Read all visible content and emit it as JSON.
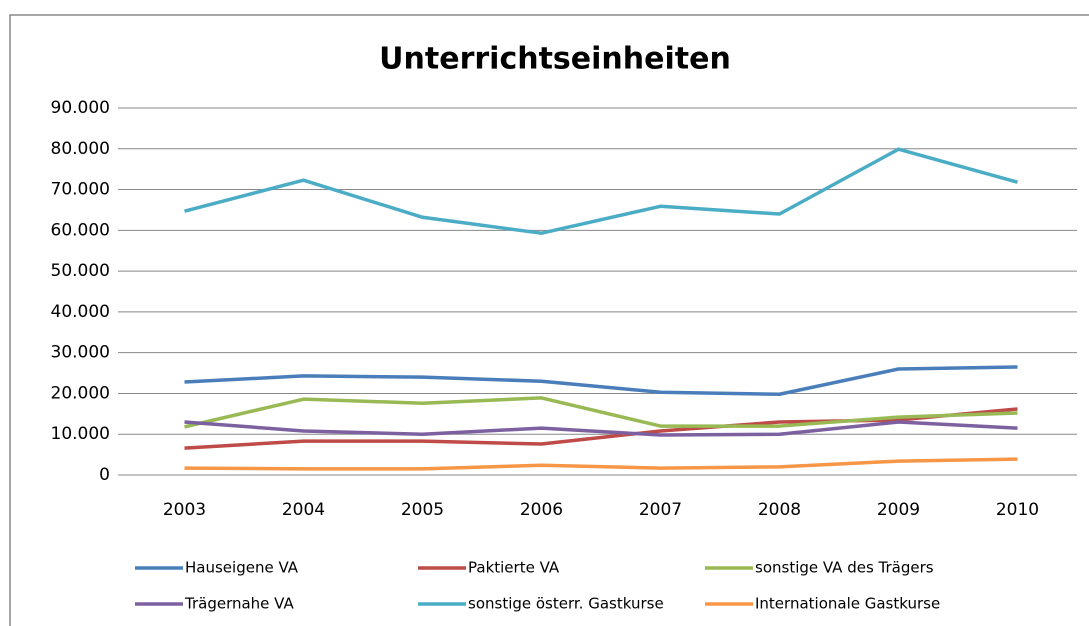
{
  "chart_data": {
    "type": "line",
    "title": "Unterrichtseinheiten",
    "categories": [
      "2003",
      "2004",
      "2005",
      "2006",
      "2007",
      "2008",
      "2009",
      "2010"
    ],
    "series": [
      {
        "name": "Hauseigene VA",
        "color": "#4a7ebb",
        "values": [
          22800,
          24300,
          24000,
          23000,
          20300,
          19800,
          26000,
          26500
        ]
      },
      {
        "name": "Paktierte VA",
        "color": "#be4b48",
        "values": [
          6600,
          8300,
          8300,
          7600,
          10800,
          13000,
          13500,
          16200
        ]
      },
      {
        "name": "sonstige VA des Trägers",
        "color": "#98b954",
        "values": [
          11800,
          18600,
          17600,
          18900,
          12000,
          12000,
          14200,
          15200
        ]
      },
      {
        "name": "Trägernahe VA",
        "color": "#7d60a0",
        "values": [
          13000,
          10800,
          10000,
          11500,
          9800,
          10000,
          13000,
          11500
        ]
      },
      {
        "name": "sonstige österr. Gastkurse",
        "color": "#4bacc6",
        "values": [
          64700,
          72300,
          63200,
          59300,
          65900,
          64000,
          79900,
          71800
        ]
      },
      {
        "name": "Internationale Gastkurse",
        "color": "#f79646",
        "values": [
          1700,
          1500,
          1500,
          2400,
          1700,
          2000,
          3400,
          3900
        ]
      }
    ],
    "ylim": [
      0,
      90000
    ],
    "yticks": [
      0,
      {
        "value": 10000,
        "label": "10.000"
      },
      {
        "value": 20000,
        "label": "20.000"
      },
      {
        "value": 30000,
        "label": "30.000"
      },
      {
        "value": 40000,
        "label": "40.000"
      },
      {
        "value": 50000,
        "label": "50.000"
      },
      {
        "value": 60000,
        "label": "60.000"
      },
      {
        "value": 70000,
        "label": "70.000"
      },
      {
        "value": 80000,
        "label": "80.000"
      },
      {
        "value": 90000,
        "label": "90.000"
      }
    ],
    "grid": true,
    "legend": "bottom"
  }
}
